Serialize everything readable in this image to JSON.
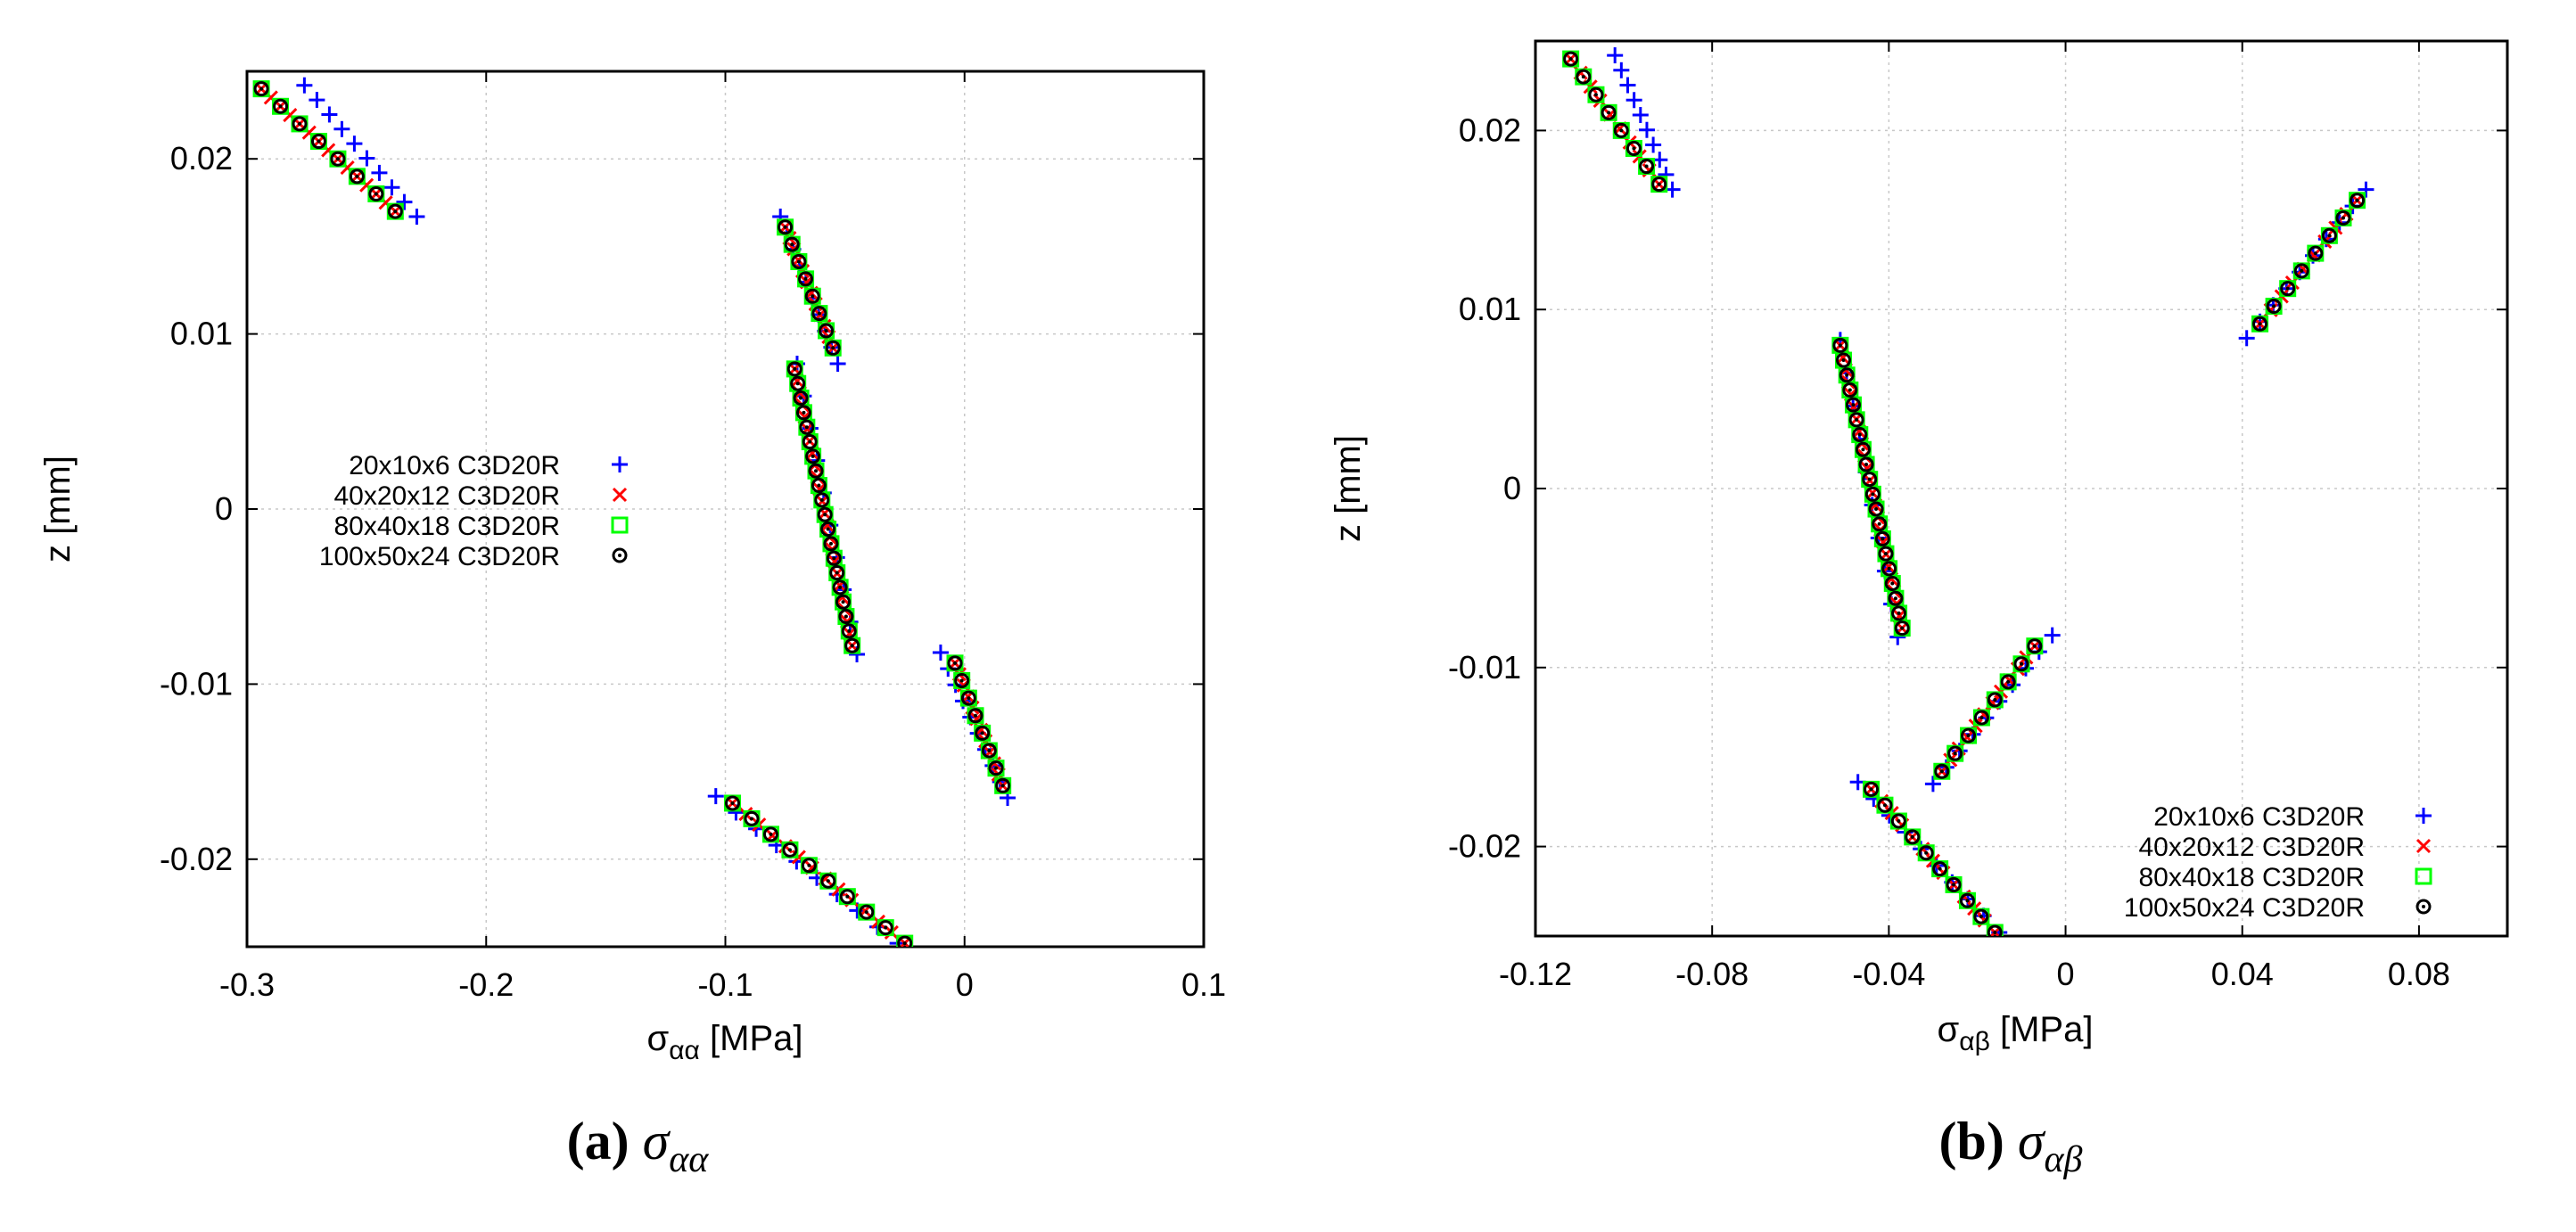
{
  "figure": {
    "captions": [
      {
        "tag": "(a)",
        "symbol": "σ",
        "subscript": "αα"
      },
      {
        "tag": "(b)",
        "symbol": "σ",
        "subscript": "αβ"
      }
    ]
  },
  "chart_data": [
    {
      "type": "scatter",
      "panel": "a",
      "xlabel": {
        "symbol": "σ",
        "subscript": "αα",
        "unit": "[MPa]"
      },
      "ylabel": "z [mm]",
      "xlim": [
        -0.3,
        0.1
      ],
      "ylim": [
        -0.025,
        0.025
      ],
      "xticks": [
        -0.3,
        -0.2,
        -0.1,
        0,
        0.1
      ],
      "xtick_labels": [
        "-0.3",
        "-0.2",
        "-0.1",
        "0",
        "0.1"
      ],
      "yticks": [
        -0.02,
        -0.01,
        0,
        0.01,
        0.02
      ],
      "ytick_labels": [
        "-0.02",
        "-0.01",
        "0",
        "0.01",
        "0.02"
      ],
      "grid": true,
      "legend_position": "center-left",
      "series": [
        {
          "name": "20x10x6 C3D20R",
          "marker": "plus",
          "color": "#0000ff",
          "segments": [
            {
              "x": [
                -0.276,
                -0.229
              ],
              "y": [
                0.0242,
                0.0167
              ],
              "n": 10
            },
            {
              "x": [
                -0.077,
                -0.053
              ],
              "y": [
                0.0167,
                0.0083
              ],
              "n": 10
            },
            {
              "x": [
                -0.07,
                -0.045
              ],
              "y": [
                0.0083,
                -0.0083
              ],
              "n": 10
            },
            {
              "x": [
                -0.01,
                0.018
              ],
              "y": [
                -0.0082,
                -0.0165
              ],
              "n": 10
            },
            {
              "x": [
                -0.104,
                -0.028
              ],
              "y": [
                -0.0164,
                -0.0248
              ],
              "n": 10
            }
          ]
        },
        {
          "name": "40x20x12 C3D20R",
          "marker": "cross",
          "color": "#ff0000",
          "segments": [
            {
              "x": [
                -0.294,
                -0.238
              ],
              "y": [
                0.024,
                0.017
              ],
              "n": 15
            },
            {
              "x": [
                -0.075,
                -0.055
              ],
              "y": [
                0.0161,
                0.0092
              ],
              "n": 12
            },
            {
              "x": [
                -0.071,
                -0.047
              ],
              "y": [
                0.008,
                -0.0078
              ],
              "n": 24
            },
            {
              "x": [
                -0.004,
                0.016
              ],
              "y": [
                -0.0088,
                -0.0158
              ],
              "n": 12
            },
            {
              "x": [
                -0.097,
                -0.025
              ],
              "y": [
                -0.0168,
                -0.0248
              ],
              "n": 14
            }
          ]
        },
        {
          "name": "80x40x18 C3D20R",
          "marker": "square",
          "color": "#00ff00",
          "segments": [
            {
              "x": [
                -0.294,
                -0.238
              ],
              "y": [
                0.024,
                0.017
              ],
              "n": 8
            },
            {
              "x": [
                -0.075,
                -0.055
              ],
              "y": [
                0.0161,
                0.0092
              ],
              "n": 8
            },
            {
              "x": [
                -0.071,
                -0.047
              ],
              "y": [
                0.008,
                -0.0078
              ],
              "n": 20
            },
            {
              "x": [
                -0.004,
                0.016
              ],
              "y": [
                -0.0088,
                -0.0158
              ],
              "n": 8
            },
            {
              "x": [
                -0.097,
                -0.025
              ],
              "y": [
                -0.0168,
                -0.0248
              ],
              "n": 10
            }
          ]
        },
        {
          "name": "100x50x24 C3D20R",
          "marker": "circle-dot",
          "color": "#000000",
          "segments": [
            {
              "x": [
                -0.294,
                -0.238
              ],
              "y": [
                0.024,
                0.017
              ],
              "n": 8
            },
            {
              "x": [
                -0.075,
                -0.055
              ],
              "y": [
                0.0161,
                0.0092
              ],
              "n": 8
            },
            {
              "x": [
                -0.071,
                -0.047
              ],
              "y": [
                0.008,
                -0.0078
              ],
              "n": 20
            },
            {
              "x": [
                -0.004,
                0.016
              ],
              "y": [
                -0.0088,
                -0.0158
              ],
              "n": 8
            },
            {
              "x": [
                -0.097,
                -0.025
              ],
              "y": [
                -0.0168,
                -0.0248
              ],
              "n": 10
            }
          ]
        }
      ]
    },
    {
      "type": "scatter",
      "panel": "b",
      "xlabel": {
        "symbol": "σ",
        "subscript": "αβ",
        "unit": "[MPa]"
      },
      "ylabel": "z [mm]",
      "xlim": [
        -0.12,
        0.1
      ],
      "ylim": [
        -0.025,
        0.025
      ],
      "xticks": [
        -0.12,
        -0.08,
        -0.04,
        0,
        0.04,
        0.08
      ],
      "xtick_labels": [
        "-0.12",
        "-0.08",
        "-0.04",
        "0",
        "0.04",
        "0.08"
      ],
      "yticks": [
        -0.02,
        -0.01,
        0,
        0.01,
        0.02
      ],
      "ytick_labels": [
        "-0.02",
        "-0.01",
        "0",
        "0.01",
        "0.02"
      ],
      "grid": true,
      "legend_position": "bottom-right",
      "series": [
        {
          "name": "20x10x6 C3D20R",
          "marker": "plus",
          "color": "#0000ff",
          "segments": [
            {
              "x": [
                -0.102,
                -0.089
              ],
              "y": [
                0.0242,
                0.0167
              ],
              "n": 10
            },
            {
              "x": [
                0.041,
                0.068
              ],
              "y": [
                0.0084,
                0.0167
              ],
              "n": 10
            },
            {
              "x": [
                -0.051,
                -0.038
              ],
              "y": [
                0.0083,
                -0.0083
              ],
              "n": 10
            },
            {
              "x": [
                -0.003,
                -0.03
              ],
              "y": [
                -0.0082,
                -0.0165
              ],
              "n": 10
            },
            {
              "x": [
                -0.047,
                -0.015
              ],
              "y": [
                -0.0164,
                -0.0248
              ],
              "n": 10
            }
          ]
        },
        {
          "name": "40x20x12 C3D20R",
          "marker": "cross",
          "color": "#ff0000",
          "segments": [
            {
              "x": [
                -0.112,
                -0.092
              ],
              "y": [
                0.024,
                0.017
              ],
              "n": 10
            },
            {
              "x": [
                0.044,
                0.066
              ],
              "y": [
                0.0092,
                0.0161
              ],
              "n": 10
            },
            {
              "x": [
                -0.051,
                -0.037
              ],
              "y": [
                0.008,
                -0.0078
              ],
              "n": 24
            },
            {
              "x": [
                -0.007,
                -0.028
              ],
              "y": [
                -0.0088,
                -0.0158
              ],
              "n": 12
            },
            {
              "x": [
                -0.044,
                -0.016
              ],
              "y": [
                -0.0168,
                -0.0248
              ],
              "n": 13
            }
          ]
        },
        {
          "name": "80x40x18 C3D20R",
          "marker": "square",
          "color": "#00ff00",
          "segments": [
            {
              "x": [
                -0.112,
                -0.092
              ],
              "y": [
                0.024,
                0.017
              ],
              "n": 8
            },
            {
              "x": [
                0.044,
                0.066
              ],
              "y": [
                0.0092,
                0.0161
              ],
              "n": 8
            },
            {
              "x": [
                -0.051,
                -0.037
              ],
              "y": [
                0.008,
                -0.0078
              ],
              "n": 20
            },
            {
              "x": [
                -0.007,
                -0.028
              ],
              "y": [
                -0.0088,
                -0.0158
              ],
              "n": 8
            },
            {
              "x": [
                -0.044,
                -0.016
              ],
              "y": [
                -0.0168,
                -0.0248
              ],
              "n": 10
            }
          ]
        },
        {
          "name": "100x50x24 C3D20R",
          "marker": "circle-dot",
          "color": "#000000",
          "segments": [
            {
              "x": [
                -0.112,
                -0.092
              ],
              "y": [
                0.024,
                0.017
              ],
              "n": 8
            },
            {
              "x": [
                0.044,
                0.066
              ],
              "y": [
                0.0092,
                0.0161
              ],
              "n": 8
            },
            {
              "x": [
                -0.051,
                -0.037
              ],
              "y": [
                0.008,
                -0.0078
              ],
              "n": 20
            },
            {
              "x": [
                -0.007,
                -0.028
              ],
              "y": [
                -0.0088,
                -0.0158
              ],
              "n": 8
            },
            {
              "x": [
                -0.044,
                -0.016
              ],
              "y": [
                -0.0168,
                -0.0248
              ],
              "n": 10
            }
          ]
        }
      ]
    }
  ]
}
